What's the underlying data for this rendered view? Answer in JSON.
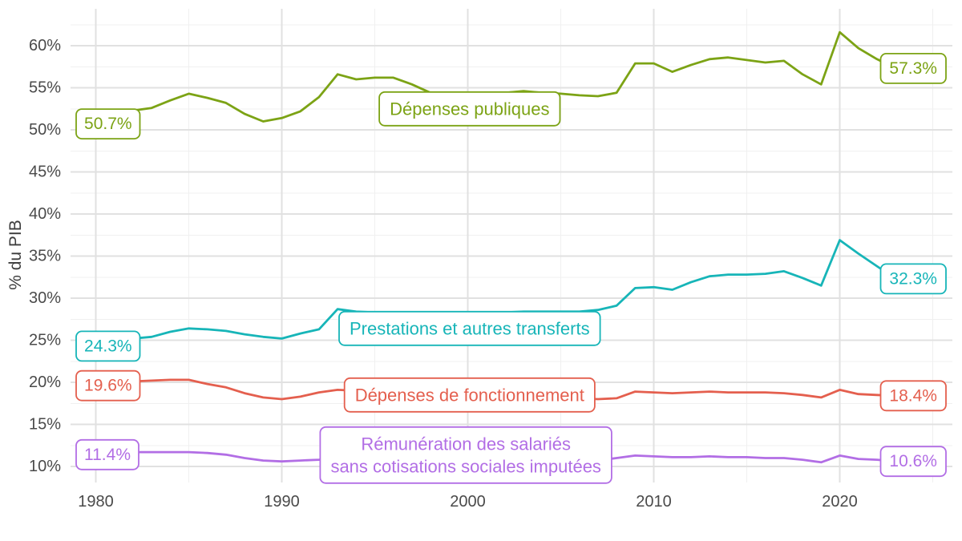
{
  "page": {
    "background": "#ffffff"
  },
  "axis": {
    "y_title": "% du PIB",
    "y_tick_suffix": "%",
    "tick_color": "#4a4a4a",
    "title_color": "#3c3c3c"
  },
  "grid": {
    "major_color": "#e1e1e1",
    "minor_color": "#f0f0f0"
  },
  "chart_data": {
    "type": "line",
    "title": "",
    "xlabel": "",
    "ylabel": "% du PIB",
    "x_start": 1980,
    "x_end": 2023,
    "x_ticks": [
      1980,
      1990,
      2000,
      2010,
      2020
    ],
    "y_ticks_percent": [
      10,
      15,
      20,
      25,
      30,
      35,
      40,
      45,
      50,
      55,
      60
    ],
    "xlim": [
      1978.6,
      2026.1
    ],
    "ylim": [
      8.0,
      64.3
    ],
    "grid": "major+minor",
    "legend_position": "inline-labels",
    "series": [
      {
        "id": "depenses-publiques",
        "name": "Dépenses publiques",
        "name_lines": [
          "Dépenses publiques"
        ],
        "color": "#7ca315",
        "start_label": "50.7%",
        "end_label": "57.3%",
        "name_anchor": {
          "year": 2000.1,
          "value": 52.5
        },
        "values": [
          50.7,
          51.9,
          52.3,
          52.6,
          53.5,
          54.3,
          53.8,
          53.2,
          51.9,
          51.0,
          51.4,
          52.2,
          53.9,
          56.6,
          56.0,
          56.2,
          56.2,
          55.4,
          54.4,
          54.3,
          54.2,
          54.2,
          54.4,
          54.6,
          54.4,
          54.3,
          54.1,
          54.0,
          54.4,
          57.9,
          57.9,
          56.9,
          57.7,
          58.4,
          58.6,
          58.3,
          58.0,
          58.2,
          56.6,
          55.4,
          61.6,
          59.7,
          58.4,
          57.3
        ]
      },
      {
        "id": "prestations",
        "name": "Prestations et autres transferts",
        "name_lines": [
          "Prestations et autres transferts"
        ],
        "color": "#17b5b8",
        "start_label": "24.3%",
        "end_label": "32.3%",
        "name_anchor": {
          "year": 2000.1,
          "value": 26.4
        },
        "values": [
          24.3,
          24.8,
          25.2,
          25.4,
          26.0,
          26.4,
          26.3,
          26.1,
          25.7,
          25.4,
          25.2,
          25.8,
          26.3,
          28.7,
          28.4,
          28.3,
          28.3,
          28.2,
          28.1,
          28.1,
          28.2,
          28.3,
          28.3,
          28.4,
          28.4,
          28.4,
          28.4,
          28.6,
          29.1,
          31.2,
          31.3,
          31.0,
          31.9,
          32.6,
          32.8,
          32.8,
          32.9,
          33.2,
          32.4,
          31.5,
          36.9,
          35.3,
          33.8,
          32.3
        ]
      },
      {
        "id": "fonctionnement",
        "name": "Dépenses de fonctionnement",
        "name_lines": [
          "Dépenses de fonctionnement"
        ],
        "color": "#e45f4e",
        "start_label": "19.6%",
        "end_label": "18.4%",
        "name_anchor": {
          "year": 2000.1,
          "value": 18.5
        },
        "values": [
          19.6,
          19.9,
          20.1,
          20.2,
          20.3,
          20.3,
          19.8,
          19.4,
          18.7,
          18.2,
          18.0,
          18.3,
          18.8,
          19.1,
          19.0,
          18.9,
          18.9,
          18.7,
          18.5,
          18.4,
          18.3,
          18.3,
          18.4,
          18.4,
          18.2,
          18.2,
          18.1,
          18.0,
          18.1,
          18.9,
          18.8,
          18.7,
          18.8,
          18.9,
          18.8,
          18.8,
          18.8,
          18.7,
          18.5,
          18.2,
          19.1,
          18.6,
          18.5,
          18.4
        ]
      },
      {
        "id": "remuneration",
        "name": "Rémunération des salariés sans cotisations sociales imputées",
        "name_lines": [
          "Rémunération des salariés",
          "sans cotisations sociales imputées"
        ],
        "color": "#b26ee5",
        "start_label": "11.4%",
        "end_label": "10.6%",
        "name_anchor": {
          "year": 1999.9,
          "value": 11.35
        },
        "values": [
          11.4,
          11.6,
          11.7,
          11.7,
          11.7,
          11.7,
          11.6,
          11.4,
          11.0,
          10.7,
          10.6,
          10.7,
          10.8,
          11.0,
          11.0,
          11.0,
          11.0,
          10.9,
          10.8,
          10.8,
          10.8,
          10.8,
          10.9,
          10.9,
          10.8,
          10.8,
          10.7,
          10.7,
          11.0,
          11.3,
          11.2,
          11.1,
          11.1,
          11.2,
          11.1,
          11.1,
          11.0,
          11.0,
          10.8,
          10.5,
          11.3,
          10.9,
          10.8,
          10.6
        ]
      }
    ]
  }
}
